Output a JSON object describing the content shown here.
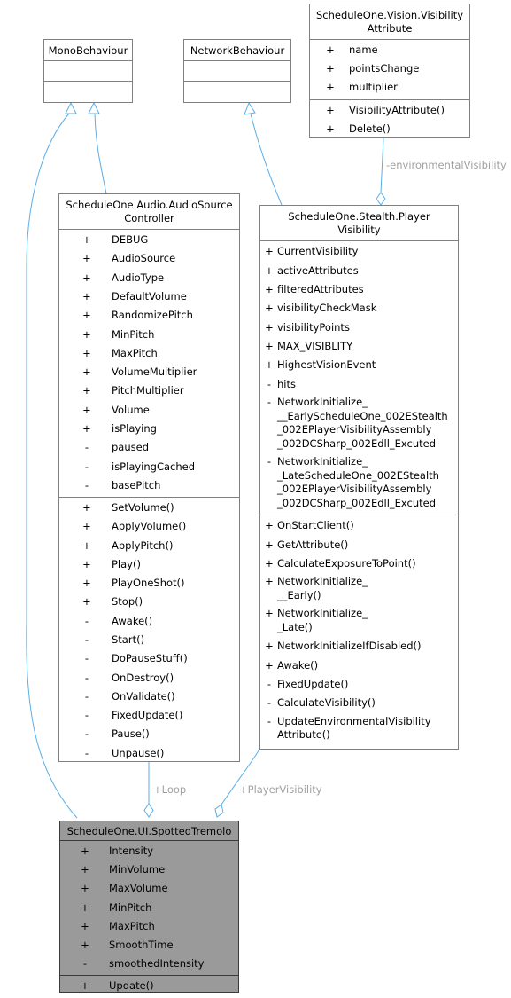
{
  "classes": {
    "mono": {
      "title_lines": [
        "MonoBehaviour"
      ],
      "attributes": [],
      "operations": []
    },
    "net": {
      "title_lines": [
        "NetworkBehaviour"
      ],
      "attributes": [],
      "operations": []
    },
    "vis": {
      "title_lines": [
        "ScheduleOne.Vision.Visibility",
        "Attribute"
      ],
      "attributes": [
        {
          "mark": "+",
          "lines": [
            "name"
          ]
        },
        {
          "mark": "+",
          "lines": [
            "pointsChange"
          ]
        },
        {
          "mark": "+",
          "lines": [
            "multiplier"
          ]
        }
      ],
      "operations": [
        {
          "mark": "+",
          "lines": [
            "VisibilityAttribute()"
          ]
        },
        {
          "mark": "+",
          "lines": [
            "Delete()"
          ]
        }
      ]
    },
    "audio": {
      "title_lines": [
        "ScheduleOne.Audio.AudioSource",
        "Controller"
      ],
      "attributes": [
        {
          "mark": "+",
          "lines": [
            "DEBUG"
          ]
        },
        {
          "mark": "+",
          "lines": [
            "AudioSource"
          ]
        },
        {
          "mark": "+",
          "lines": [
            "AudioType"
          ]
        },
        {
          "mark": "+",
          "lines": [
            "DefaultVolume"
          ]
        },
        {
          "mark": "+",
          "lines": [
            "RandomizePitch"
          ]
        },
        {
          "mark": "+",
          "lines": [
            "MinPitch"
          ]
        },
        {
          "mark": "+",
          "lines": [
            "MaxPitch"
          ]
        },
        {
          "mark": "+",
          "lines": [
            "VolumeMultiplier"
          ]
        },
        {
          "mark": "+",
          "lines": [
            "PitchMultiplier"
          ]
        },
        {
          "mark": "+",
          "lines": [
            "Volume"
          ]
        },
        {
          "mark": "+",
          "lines": [
            "isPlaying"
          ]
        },
        {
          "mark": "-",
          "lines": [
            "paused"
          ]
        },
        {
          "mark": "-",
          "lines": [
            "isPlayingCached"
          ]
        },
        {
          "mark": "-",
          "lines": [
            "basePitch"
          ]
        }
      ],
      "operations": [
        {
          "mark": "+",
          "lines": [
            "SetVolume()"
          ]
        },
        {
          "mark": "+",
          "lines": [
            "ApplyVolume()"
          ]
        },
        {
          "mark": "+",
          "lines": [
            "ApplyPitch()"
          ]
        },
        {
          "mark": "+",
          "lines": [
            "Play()"
          ]
        },
        {
          "mark": "+",
          "lines": [
            "PlayOneShot()"
          ]
        },
        {
          "mark": "+",
          "lines": [
            "Stop()"
          ]
        },
        {
          "mark": "-",
          "lines": [
            "Awake()"
          ]
        },
        {
          "mark": "-",
          "lines": [
            "Start()"
          ]
        },
        {
          "mark": "-",
          "lines": [
            "DoPauseStuff()"
          ]
        },
        {
          "mark": "-",
          "lines": [
            "OnDestroy()"
          ]
        },
        {
          "mark": "-",
          "lines": [
            "OnValidate()"
          ]
        },
        {
          "mark": "-",
          "lines": [
            "FixedUpdate()"
          ]
        },
        {
          "mark": "-",
          "lines": [
            "Pause()"
          ]
        },
        {
          "mark": "-",
          "lines": [
            "Unpause()"
          ]
        }
      ]
    },
    "player": {
      "title_lines": [
        "ScheduleOne.Stealth.Player",
        "Visibility"
      ],
      "attributes": [
        {
          "mark": "+",
          "lines": [
            "CurrentVisibility"
          ]
        },
        {
          "mark": "+",
          "lines": [
            "activeAttributes"
          ]
        },
        {
          "mark": "+",
          "lines": [
            "filteredAttributes"
          ]
        },
        {
          "mark": "+",
          "lines": [
            "visibilityCheckMask"
          ]
        },
        {
          "mark": "+",
          "lines": [
            "visibilityPoints"
          ]
        },
        {
          "mark": "+",
          "lines": [
            "MAX_VISIBLITY"
          ]
        },
        {
          "mark": "+",
          "lines": [
            "HighestVisionEvent"
          ]
        },
        {
          "mark": "-",
          "lines": [
            "hits"
          ]
        },
        {
          "mark": "-",
          "lines": [
            "NetworkInitialize_",
            "__EarlyScheduleOne_002EStealth",
            "_002EPlayerVisibilityAssembly",
            "_002DCSharp_002Edll_Excuted"
          ]
        },
        {
          "mark": "-",
          "lines": [
            "NetworkInitialize_",
            "_LateScheduleOne_002EStealth",
            "_002EPlayerVisibilityAssembly",
            "_002DCSharp_002Edll_Excuted"
          ]
        }
      ],
      "operations": [
        {
          "mark": "+",
          "lines": [
            "OnStartClient()"
          ]
        },
        {
          "mark": "+",
          "lines": [
            "GetAttribute()"
          ]
        },
        {
          "mark": "+",
          "lines": [
            "CalculateExposureToPoint()"
          ]
        },
        {
          "mark": "+",
          "lines": [
            "NetworkInitialize_",
            "__Early()"
          ]
        },
        {
          "mark": "+",
          "lines": [
            "NetworkInitialize_",
            "_Late()"
          ]
        },
        {
          "mark": "+",
          "lines": [
            "NetworkInitializeIfDisabled()"
          ]
        },
        {
          "mark": "+",
          "lines": [
            "Awake()"
          ]
        },
        {
          "mark": "-",
          "lines": [
            "FixedUpdate()"
          ]
        },
        {
          "mark": "-",
          "lines": [
            "CalculateVisibility()"
          ]
        },
        {
          "mark": "-",
          "lines": [
            "UpdateEnvironmentalVisibility",
            "Attribute()"
          ]
        }
      ]
    },
    "spotted": {
      "title_lines": [
        "ScheduleOne.UI.SpottedTremolo"
      ],
      "attributes": [
        {
          "mark": "+",
          "lines": [
            "Intensity"
          ]
        },
        {
          "mark": "+",
          "lines": [
            "MinVolume"
          ]
        },
        {
          "mark": "+",
          "lines": [
            "MaxVolume"
          ]
        },
        {
          "mark": "+",
          "lines": [
            "MinPitch"
          ]
        },
        {
          "mark": "+",
          "lines": [
            "MaxPitch"
          ]
        },
        {
          "mark": "+",
          "lines": [
            "SmoothTime"
          ]
        },
        {
          "mark": "-",
          "lines": [
            "smoothedIntensity"
          ]
        }
      ],
      "operations": [
        {
          "mark": "+",
          "lines": [
            "Update()"
          ]
        }
      ]
    }
  },
  "edge_labels": {
    "environmental": "-environmentalVisibility",
    "loop": "+Loop",
    "player_visibility": "+PlayerVisibility"
  },
  "colors": {
    "edge": "#5aaee6",
    "box_border": "#808080",
    "highlight_fill": "#9a9a9a",
    "label": "#a0a0a0"
  }
}
